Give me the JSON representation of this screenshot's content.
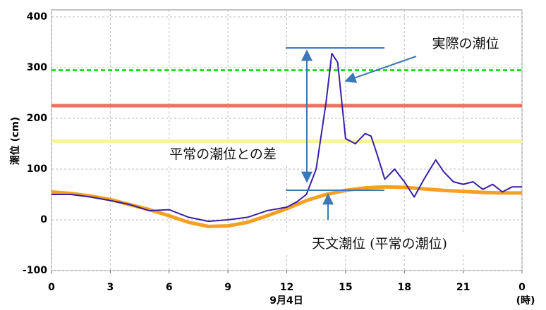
{
  "chart_data": {
    "type": "line",
    "ylabel": "潮位 (cm)",
    "xlabel": "9月4日",
    "xunit": "(時)",
    "xlim": [
      0,
      24
    ],
    "xticks": [
      0,
      3,
      6,
      9,
      12,
      15,
      18,
      21,
      {
        "value": 24,
        "label": "0"
      }
    ],
    "ylim": [
      -100,
      400
    ],
    "yticks": [
      -100,
      0,
      100,
      200,
      300,
      400
    ],
    "grid": true,
    "reference_lines": [
      {
        "value": 295,
        "color": "#22dd22",
        "style": "dashed"
      },
      {
        "value": 225,
        "color": "#f07060",
        "style": "solid"
      },
      {
        "value": 155,
        "color": "#f8f598",
        "style": "solid"
      }
    ],
    "series": [
      {
        "color": "#f5a020",
        "width": 5,
        "x": [
          0,
          1,
          2,
          3,
          4,
          5,
          6,
          7,
          8,
          9,
          10,
          11,
          12,
          13,
          14,
          15,
          16,
          17,
          18,
          19,
          20,
          21,
          22,
          23,
          24
        ],
        "values": [
          55,
          52,
          47,
          40,
          30,
          20,
          8,
          -5,
          -13,
          -12,
          -5,
          8,
          22,
          38,
          50,
          58,
          63,
          65,
          64,
          61,
          58,
          56,
          54,
          53,
          53
        ]
      },
      {
        "color": "#3a1fa8",
        "width": 2,
        "x": [
          0,
          1,
          2,
          3,
          4,
          5,
          6,
          7,
          8,
          9,
          10,
          11,
          12,
          12.5,
          13,
          13.5,
          14,
          14.3,
          14.6,
          15,
          15.5,
          16,
          16.3,
          16.6,
          17,
          17.5,
          18,
          18.5,
          19,
          19.6,
          20,
          20.5,
          21,
          21.5,
          22,
          22.5,
          23,
          23.5,
          24
        ],
        "values": [
          50,
          50,
          45,
          38,
          30,
          18,
          20,
          5,
          -3,
          0,
          5,
          18,
          25,
          35,
          50,
          100,
          230,
          328,
          310,
          160,
          150,
          170,
          165,
          130,
          80,
          100,
          75,
          45,
          80,
          118,
          95,
          75,
          70,
          75,
          60,
          70,
          55,
          65,
          65
        ]
      }
    ],
    "annotations": [
      "実際の潮位",
      "平常の潮位との差",
      "天文潮位 (平常の潮位)"
    ]
  }
}
